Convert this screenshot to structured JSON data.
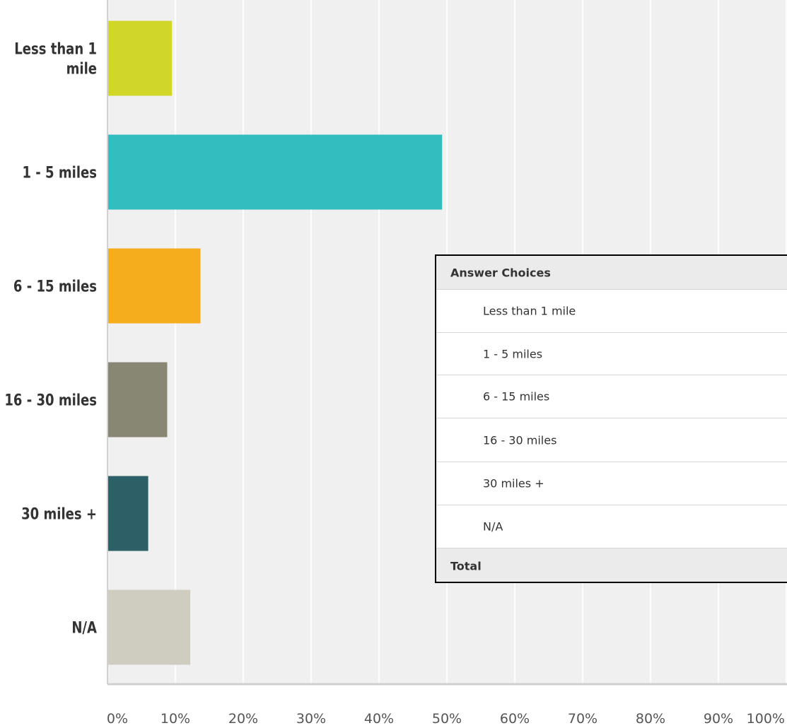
{
  "chart_data": {
    "type": "bar",
    "orientation": "horizontal",
    "categories": [
      "Less than 1 mile",
      "1 - 5 miles",
      "6 - 15 miles",
      "16 - 30 miles",
      "30 miles +",
      "N/A"
    ],
    "category_labels": [
      [
        "Less than 1",
        "mile"
      ],
      [
        "1 - 5 miles"
      ],
      [
        "6 - 15 miles"
      ],
      [
        "16 - 30 miles"
      ],
      [
        "30 miles +"
      ],
      [
        "N/A"
      ]
    ],
    "values": [
      9.5,
      49.3,
      13.7,
      8.8,
      6.0,
      12.2
    ],
    "colors": [
      "#d0d62a",
      "#33bdbf",
      "#f6ad1d",
      "#878774",
      "#2d5f67",
      "#cfcdbf"
    ],
    "xlim": [
      0,
      100
    ],
    "x_ticks": [
      0,
      10,
      20,
      30,
      40,
      50,
      60,
      70,
      80,
      90,
      100
    ],
    "x_tick_labels": [
      "0%",
      "10%",
      "20%",
      "30%",
      "40%",
      "50%",
      "60%",
      "70%",
      "80%",
      "90%",
      "100%"
    ],
    "grid": true,
    "background": "#f0f0f0"
  },
  "table": {
    "header": "Answer Choices",
    "rows": [
      "Less than 1 mile",
      "1 - 5 miles",
      "6 - 15 miles",
      "16 - 30 miles",
      "30 miles +",
      "N/A"
    ],
    "total_label": "Total"
  }
}
